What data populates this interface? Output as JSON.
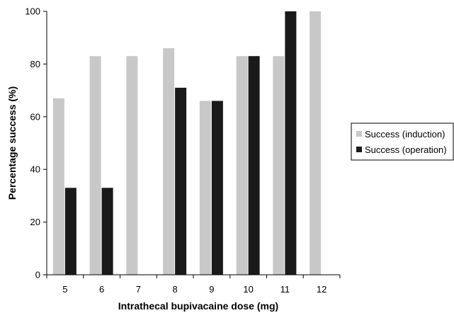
{
  "chart_data": {
    "type": "bar",
    "categories": [
      "5",
      "6",
      "7",
      "8",
      "9",
      "10",
      "11",
      "12"
    ],
    "series": [
      {
        "name": "Success (induction)",
        "color": "#c8c8c8",
        "values": [
          67,
          83,
          83,
          86,
          66,
          83,
          83,
          100
        ]
      },
      {
        "name": "Success (operation)",
        "color": "#1a1a1a",
        "values": [
          33,
          33,
          0,
          71,
          66,
          83,
          100,
          0
        ]
      }
    ],
    "xlabel": "Intrathecal bupivacaine dose (mg)",
    "ylabel": "Percentage success (%)",
    "ylim": [
      0,
      100
    ],
    "yticks": [
      "0",
      "20",
      "40",
      "60",
      "80",
      "100"
    ],
    "grid": false,
    "legend_position": "right"
  }
}
